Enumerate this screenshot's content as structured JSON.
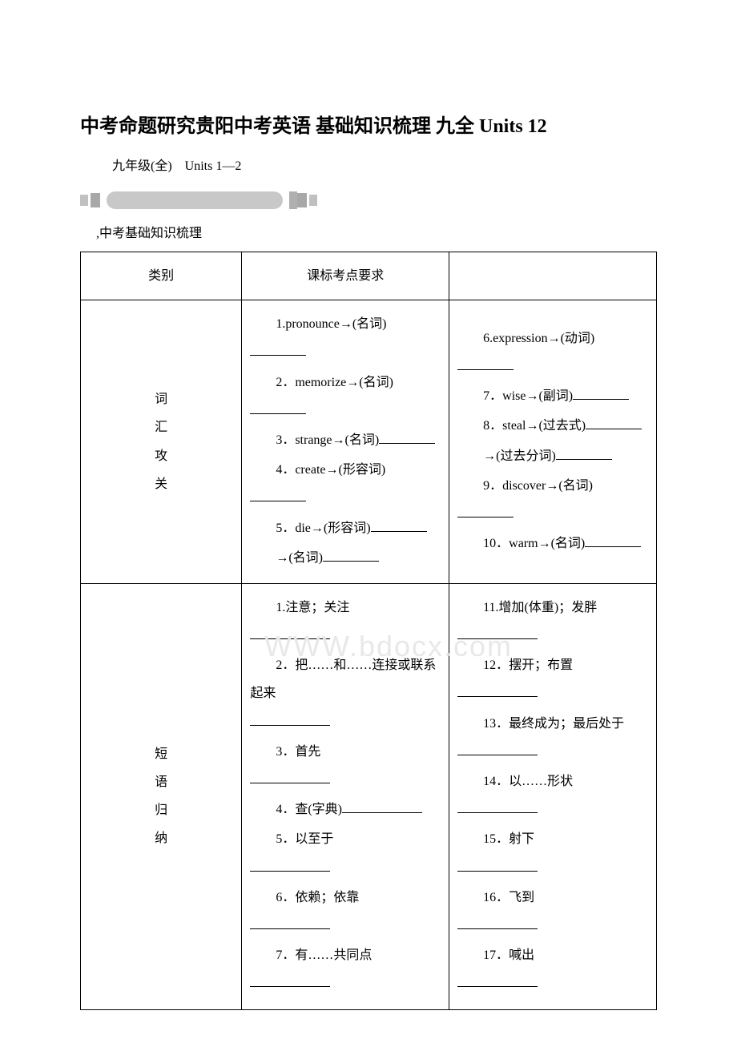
{
  "title": "中考命题研究贵阳中考英语 基础知识梳理 九全 Units 12",
  "subtitle": "九年级(全)　Units 1—2",
  "section_label": ",中考基础知识梳理",
  "watermark": "WWW.bdocx.com",
  "table": {
    "header": {
      "col1": "类别",
      "col2": "课标考点要求"
    },
    "row1": {
      "category": [
        "词",
        "汇",
        "攻",
        "关"
      ],
      "col2_items": [
        "1.pronounce→(名词)",
        "2．memorize→(名词)",
        "3．strange→(名词)",
        "4．create→(形容词)",
        "5．die→(形容词)",
        "→(名词)"
      ],
      "col3_items": [
        "6.expression→(动词)",
        "7．wise→(副词)",
        "8．steal→(过去式)",
        "→(过去分词)",
        "9．discover→(名词)",
        "10．warm→(名词)"
      ]
    },
    "row2": {
      "category": [
        "短",
        "语",
        "归",
        "纳"
      ],
      "col2_items": [
        "1.注意；关注",
        "2．把……和……连接或联系起来",
        "3．首先",
        "4．查(字典)",
        "5．以至于",
        "6．依赖；依靠",
        "7．有……共同点"
      ],
      "col3_items": [
        "11.增加(体重)；发胖",
        "12．摆开；布置",
        "13．最终成为；最后处于",
        "14．以……形状",
        "15．射下",
        "16．飞到",
        "17．喊出"
      ]
    }
  }
}
